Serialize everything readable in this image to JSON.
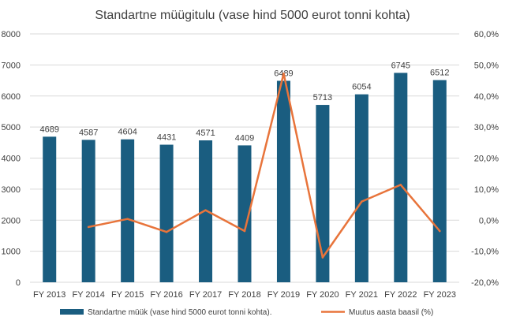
{
  "chart_data": {
    "type": "bar",
    "title": "Standartne müügitulu (vase hind 5000 eurot tonni kohta)",
    "categories": [
      "FY 2013",
      "FY 2014",
      "FY 2015",
      "FY 2016",
      "FY 2017",
      "FY 2018",
      "FY 2019",
      "FY 2020",
      "FY 2021",
      "FY 2022",
      "FY 2023"
    ],
    "series": [
      {
        "name": "Standartne müük (vase hind 5000 eurot tonni kohta).",
        "type": "bar",
        "axis": "left",
        "color": "#1a5d80",
        "values": [
          4689,
          4587,
          4604,
          4431,
          4571,
          4409,
          6489,
          5713,
          6054,
          6745,
          6512
        ],
        "labels": [
          "4689",
          "4587",
          "4604",
          "4431",
          "4571",
          "4409",
          "6489",
          "5713",
          "6054",
          "6745",
          "6512"
        ]
      },
      {
        "name": "Muutus aasta baasil (%)",
        "type": "line",
        "axis": "right",
        "color": "#e8743b",
        "values": [
          null,
          -2.2,
          0.4,
          -3.8,
          3.2,
          -3.5,
          47.2,
          -12.0,
          6.0,
          11.4,
          -3.5
        ]
      }
    ],
    "y_left": {
      "ylim": [
        0,
        8000
      ],
      "ticks": [
        0,
        1000,
        2000,
        3000,
        4000,
        5000,
        6000,
        7000,
        8000
      ],
      "tick_labels": [
        "0",
        "1000",
        "2000",
        "3000",
        "4000",
        "5000",
        "6000",
        "7000",
        "8000"
      ]
    },
    "y_right": {
      "ylim": [
        -20,
        60
      ],
      "ticks": [
        -20,
        -10,
        0,
        10,
        20,
        30,
        40,
        50,
        60
      ],
      "tick_labels": [
        "-20,0%",
        "-10,0%",
        "0,0%",
        "10,0%",
        "20,0%",
        "30,0%",
        "40,0%",
        "50,0%",
        "60,0%"
      ]
    },
    "grid": true,
    "legend_position": "bottom"
  }
}
